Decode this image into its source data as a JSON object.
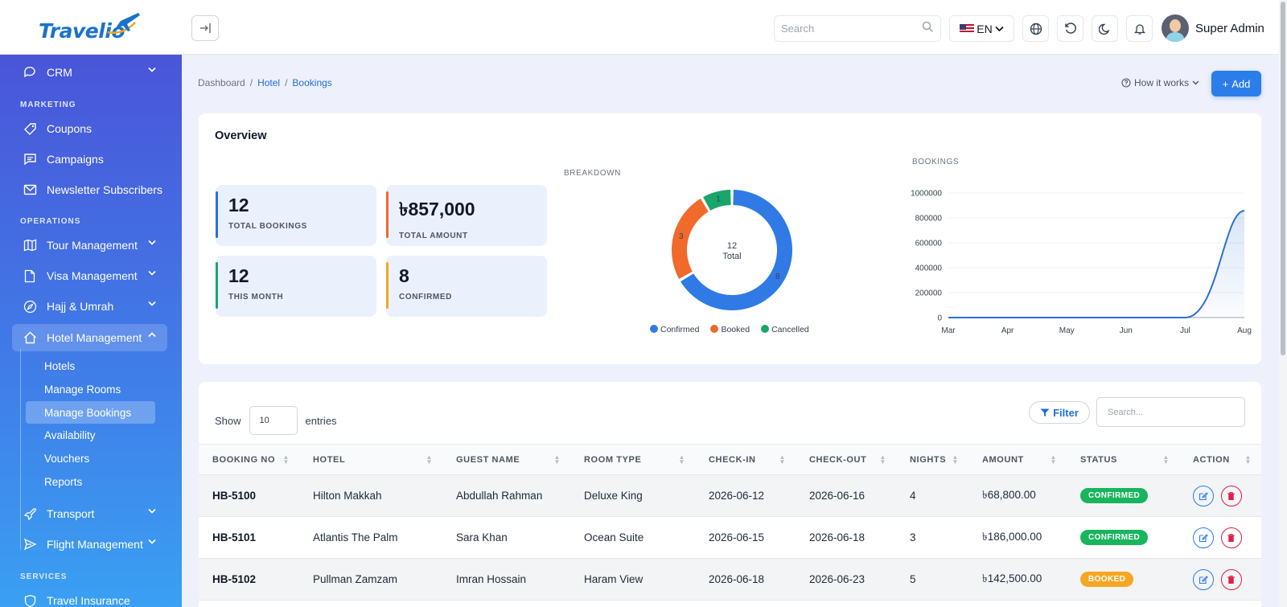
{
  "header": {
    "logo_text": "Travelio",
    "search_placeholder": "Search",
    "language": "EN",
    "user_name": "Super Admin"
  },
  "sidebar": {
    "crm": "CRM",
    "marketing_label": "MARKETING",
    "coupons": "Coupons",
    "campaigns": "Campaigns",
    "newsletter": "Newsletter Subscribers",
    "operations_label": "OPERATIONS",
    "tour": "Tour Management",
    "visa": "Visa Management",
    "hajj": "Hajj & Umrah",
    "hotel": "Hotel Management",
    "hotel_sub": [
      "Hotels",
      "Manage Rooms",
      "Manage Bookings",
      "Availability",
      "Vouchers",
      "Reports"
    ],
    "transport": "Transport",
    "flight": "Flight Management",
    "services_label": "SERVICES",
    "insurance": "Travel Insurance"
  },
  "breadcrumb": [
    "Dashboard",
    "Hotel",
    "Bookings"
  ],
  "how_it_works": "How it works",
  "add_label": "Add",
  "overview": {
    "title": "Overview",
    "stats": [
      {
        "value": "12",
        "label": "TOTAL BOOKINGS"
      },
      {
        "value": "৳857,000",
        "label": "TOTAL AMOUNT"
      },
      {
        "value": "12",
        "label": "THIS MONTH"
      },
      {
        "value": "8",
        "label": "CONFIRMED"
      }
    ],
    "breakdown_label": "BREAKDOWN",
    "bookings_label": "BOOKINGS"
  },
  "chart_data": [
    {
      "type": "pie",
      "title": "BREAKDOWN",
      "categories": [
        "Confirmed",
        "Booked",
        "Cancelled"
      ],
      "values": [
        8,
        3,
        1
      ],
      "colors": [
        "#2f7ae5",
        "#f06a2c",
        "#1aa56a"
      ],
      "center_value": "12",
      "center_label": "Total",
      "legend": "bottom"
    },
    {
      "type": "area",
      "title": "BOOKINGS",
      "x": [
        "Mar",
        "Apr",
        "May",
        "Jun",
        "Jul",
        "Aug"
      ],
      "values": [
        0,
        0,
        0,
        0,
        0,
        857000
      ],
      "yticks": [
        "0",
        "200000",
        "400000",
        "600000",
        "800000",
        "1000000"
      ],
      "ylim": [
        0,
        1000000
      ],
      "color": "#2b6fd6",
      "grid": true
    }
  ],
  "table": {
    "show_label": "Show",
    "entries_value": "10",
    "entries_label": "entries",
    "filter_label": "Filter",
    "search_placeholder": "Search...",
    "columns": [
      "BOOKING NO",
      "HOTEL",
      "GUEST NAME",
      "ROOM TYPE",
      "CHECK-IN",
      "CHECK-OUT",
      "NIGHTS",
      "AMOUNT",
      "STATUS",
      "ACTION"
    ],
    "rows": [
      {
        "booking_no": "HB-5100",
        "hotel": "Hilton Makkah",
        "guest": "Abdullah Rahman",
        "room": "Deluxe King",
        "checkin": "2026-06-12",
        "checkout": "2026-06-16",
        "nights": "4",
        "amount": "৳68,800.00",
        "status": "CONFIRMED"
      },
      {
        "booking_no": "HB-5101",
        "hotel": "Atlantis The Palm",
        "guest": "Sara Khan",
        "room": "Ocean Suite",
        "checkin": "2026-06-15",
        "checkout": "2026-06-18",
        "nights": "3",
        "amount": "৳186,000.00",
        "status": "CONFIRMED"
      },
      {
        "booking_no": "HB-5102",
        "hotel": "Pullman Zamzam",
        "guest": "Imran Hossain",
        "room": "Haram View",
        "checkin": "2026-06-18",
        "checkout": "2026-06-23",
        "nights": "5",
        "amount": "৳142,500.00",
        "status": "BOOKED"
      }
    ]
  }
}
